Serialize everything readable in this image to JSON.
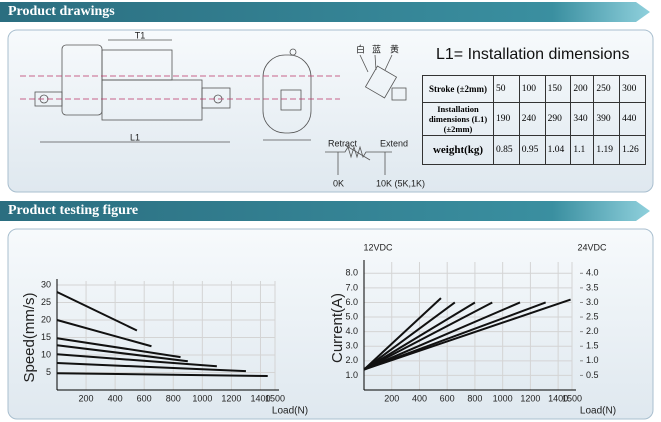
{
  "headers": [
    "Product drawings",
    "Product testing figure"
  ],
  "drawing": {
    "dims": [
      "T1",
      "L1"
    ],
    "wires": [
      "白",
      "蓝",
      "黄"
    ],
    "retract": "Retract",
    "extend": "Extend",
    "r_min": "0K",
    "r_max": "10K (5K,1K)"
  },
  "table": {
    "title": "L1= Installation dimensions",
    "rows": [
      {
        "head": "Stroke (±2mm)",
        "cells": [
          50,
          100,
          150,
          200,
          250,
          300
        ]
      },
      {
        "head": "Installation dimensions (L1)(±2mm)",
        "cells": [
          190,
          240,
          290,
          340,
          390,
          440
        ]
      },
      {
        "head": "weight(kg)",
        "cells": [
          0.85,
          0.95,
          1.04,
          1.1,
          1.19,
          1.26
        ]
      }
    ]
  },
  "chart_data": [
    {
      "type": "line",
      "y_label": "Speed(mm/s)",
      "x_label": "Load(N)",
      "grid": true,
      "xlim": [
        0,
        1500
      ],
      "xticks": [
        200,
        400,
        600,
        800,
        1000,
        1200,
        1400,
        1500
      ],
      "ylim": [
        0,
        30
      ],
      "yticks": [
        5,
        10,
        15,
        20,
        25,
        30
      ],
      "series": [
        {
          "color": "#111111",
          "x": [
            0,
            550
          ],
          "values": [
            28,
            17
          ]
        },
        {
          "color": "#111111",
          "x": [
            0,
            650
          ],
          "values": [
            20,
            12.5
          ]
        },
        {
          "color": "#111111",
          "x": [
            0,
            850
          ],
          "values": [
            14.8,
            9.4
          ]
        },
        {
          "color": "#111111",
          "x": [
            0,
            900
          ],
          "values": [
            12.8,
            8.2
          ]
        },
        {
          "color": "#111111",
          "x": [
            0,
            1100
          ],
          "values": [
            10.2,
            6.8
          ]
        },
        {
          "color": "#111111",
          "x": [
            0,
            1300
          ],
          "values": [
            7.7,
            5.4
          ]
        },
        {
          "color": "#111111",
          "x": [
            0,
            1450
          ],
          "values": [
            4.8,
            4
          ]
        }
      ]
    },
    {
      "type": "line",
      "y_label": "Current(A)",
      "x_label": "Load(N)",
      "y_title": "12VDC",
      "y2_title": "24VDC",
      "grid": true,
      "xlim": [
        0,
        1500
      ],
      "xticks": [
        200,
        400,
        600,
        800,
        1000,
        1200,
        1400,
        1500
      ],
      "ylim": [
        0,
        8.5
      ],
      "yticks": [
        {
          "value": 1,
          "label": "1.0"
        },
        {
          "value": 2,
          "label": "2.0"
        },
        {
          "value": 3,
          "label": "3.0"
        },
        {
          "value": 4,
          "label": "4.0"
        },
        {
          "value": 5,
          "label": "5.0"
        },
        {
          "value": 6,
          "label": "6.0"
        },
        {
          "value": 7,
          "label": "7.0"
        },
        {
          "value": 8,
          "label": "8.0"
        }
      ],
      "y2lim": [
        0,
        4.25
      ],
      "y2ticks": [
        0.5,
        {
          "value": 1,
          "label": "1.0"
        },
        1.5,
        {
          "value": 2,
          "label": "2.0"
        },
        2.5,
        {
          "value": 3,
          "label": "3.0"
        },
        3.5,
        {
          "value": 4,
          "label": "4.0"
        }
      ],
      "series": [
        {
          "color": "#111111",
          "x": [
            0,
            555
          ],
          "values": [
            1.4,
            6.3
          ]
        },
        {
          "color": "#111111",
          "x": [
            0,
            655
          ],
          "values": [
            1.4,
            6.0
          ]
        },
        {
          "color": "#111111",
          "x": [
            0,
            800
          ],
          "values": [
            1.4,
            6.0
          ]
        },
        {
          "color": "#111111",
          "x": [
            0,
            925
          ],
          "values": [
            1.4,
            6.0
          ]
        },
        {
          "color": "#111111",
          "x": [
            0,
            1125
          ],
          "values": [
            1.4,
            6.0
          ]
        },
        {
          "color": "#111111",
          "x": [
            0,
            1310
          ],
          "values": [
            1.4,
            6.0
          ]
        },
        {
          "color": "#111111",
          "x": [
            0,
            1490
          ],
          "values": [
            1.4,
            6.2
          ]
        }
      ]
    }
  ]
}
